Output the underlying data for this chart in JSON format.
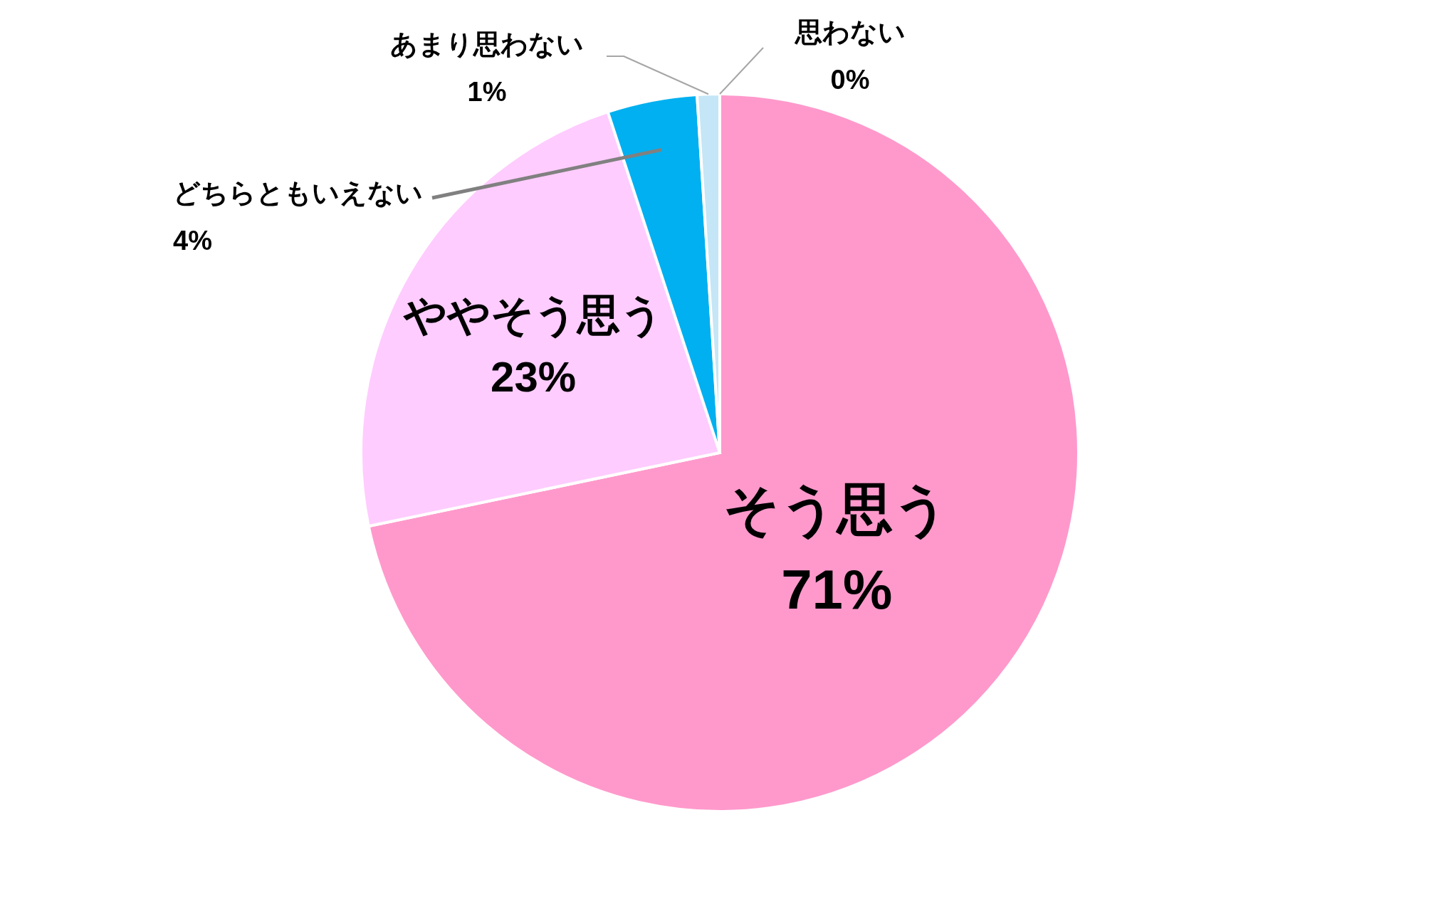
{
  "chart_data": {
    "type": "pie",
    "categories": [
      "そう思う",
      "ややそう思う",
      "どちらともいえない",
      "あまり思わない",
      "思わない"
    ],
    "values": [
      71,
      23,
      4,
      1,
      0
    ],
    "colors": [
      "#ff99cc",
      "#ffccff",
      "#00b0f0",
      "#c5e6f6",
      "#9dc3e6"
    ],
    "value_labels": [
      "71%",
      "23%",
      "4%",
      "1%",
      "0%"
    ],
    "legend": false
  }
}
